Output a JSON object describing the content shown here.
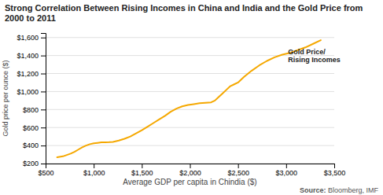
{
  "chart_data": {
    "type": "line",
    "title": "Strong Correlation Between Rising Incomes in China and India and the Gold Price from 2000 to 2011",
    "x_label": "Average GDP per capita in Chindia ($)",
    "y_label": "Gold price per ounce ($)",
    "source": "Source: Bloomberg, IMF",
    "annotations": [
      {
        "text": "Gold Price/\nRising Incomes",
        "x": 3020,
        "y": 1390
      }
    ],
    "color": "#F5A800",
    "grid": true,
    "xlim": [
      500,
      3500
    ],
    "ylim": [
      200,
      1650
    ],
    "xticks": [
      {
        "value": 500,
        "label": "$500"
      },
      {
        "value": 1000,
        "label": "$1,000"
      },
      {
        "value": 1500,
        "label": "$1,500"
      },
      {
        "value": 2000,
        "label": "$2,000"
      },
      {
        "value": 2500,
        "label": "$2,500"
      },
      {
        "value": 3000,
        "label": "$3,000"
      },
      {
        "value": 3500,
        "label": "$3,500"
      }
    ],
    "yticks": [
      {
        "value": 200,
        "label": "$200"
      },
      {
        "value": 400,
        "label": "$400"
      },
      {
        "value": 600,
        "label": "$600"
      },
      {
        "value": 800,
        "label": "$800"
      },
      {
        "value": 1000,
        "label": "$1,000"
      },
      {
        "value": 1200,
        "label": "$1,200"
      },
      {
        "value": 1400,
        "label": "$1,400"
      },
      {
        "value": 1600,
        "label": "$1,600"
      }
    ],
    "x": [
      620,
      680,
      720,
      760,
      800,
      840,
      880,
      920,
      960,
      1000,
      1040,
      1080,
      1120,
      1160,
      1200,
      1260,
      1320,
      1380,
      1440,
      1500,
      1560,
      1620,
      1680,
      1740,
      1800,
      1860,
      1920,
      1980,
      2040,
      2100,
      2160,
      2220,
      2260,
      2300,
      2340,
      2380,
      2420,
      2460,
      2500,
      2560,
      2640,
      2720,
      2800,
      2880,
      2960,
      3040,
      3120,
      3200,
      3280,
      3360
    ],
    "values": [
      270,
      280,
      295,
      310,
      330,
      355,
      380,
      400,
      415,
      425,
      430,
      435,
      435,
      437,
      440,
      455,
      475,
      500,
      535,
      570,
      610,
      650,
      690,
      730,
      775,
      810,
      835,
      850,
      860,
      870,
      875,
      880,
      900,
      940,
      980,
      1020,
      1060,
      1080,
      1100,
      1160,
      1230,
      1290,
      1340,
      1380,
      1410,
      1430,
      1460,
      1490,
      1530,
      1570
    ]
  }
}
